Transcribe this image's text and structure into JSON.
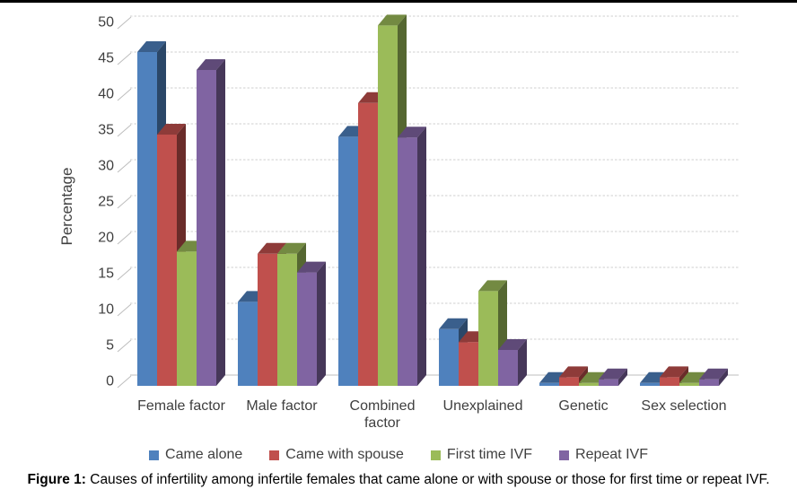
{
  "caption": {
    "prefix": "Figure 1:",
    "text": " Causes of infertility among infertile females that came alone or with spouse or those for first time or repeat IVF."
  },
  "chart_data": {
    "type": "bar",
    "subtype": "3d-clustered-column",
    "title": "",
    "xlabel": "",
    "ylabel": "Percentage",
    "ylim": [
      0,
      50
    ],
    "ytick_step": 5,
    "grid": true,
    "legend_position": "bottom",
    "categories": [
      "Female factor",
      "Male factor",
      "Combined factor",
      "Unexplained",
      "Genetic",
      "Sex selection"
    ],
    "series": [
      {
        "name": "Came alone",
        "color": "#4F81BD",
        "values": [
          46.5,
          11.7,
          34.7,
          7.9,
          0.4,
          0.4
        ]
      },
      {
        "name": "Came with spouse",
        "color": "#C0504D",
        "values": [
          35.0,
          18.4,
          39.4,
          6.1,
          1.2,
          1.2
        ]
      },
      {
        "name": "First time IVF",
        "color": "#9BBB59",
        "values": [
          18.7,
          18.4,
          50.2,
          13.2,
          0.4,
          0.4
        ]
      },
      {
        "name": "Repeat IVF",
        "color": "#8064A2",
        "values": [
          44.0,
          15.8,
          34.6,
          5.0,
          0.9,
          0.9
        ]
      }
    ],
    "yticks": [
      0,
      5,
      10,
      15,
      20,
      25,
      30,
      35,
      40,
      45,
      50
    ],
    "colors": {
      "gridline": "#cfcfcf",
      "axis_text": "#3f3f3f",
      "baseline": "#bdbdbd"
    }
  }
}
